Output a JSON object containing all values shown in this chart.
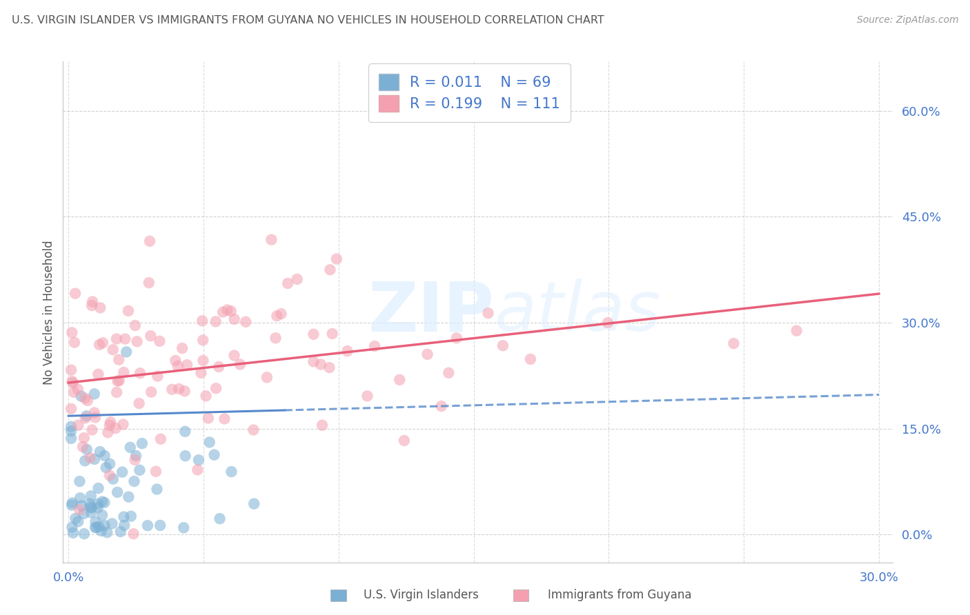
{
  "title": "U.S. VIRGIN ISLANDER VS IMMIGRANTS FROM GUYANA NO VEHICLES IN HOUSEHOLD CORRELATION CHART",
  "source": "Source: ZipAtlas.com",
  "ylabel": "No Vehicles in Household",
  "color_blue": "#7BAFD4",
  "color_pink": "#F4A0B0",
  "color_blue_line": "#5588CC",
  "color_pink_line": "#E8607A",
  "color_tick": "#4477CC",
  "title_color": "#555555",
  "source_color": "#999999",
  "background_color": "#FFFFFF",
  "grid_color": "#CCCCCC",
  "xlim": [
    -0.002,
    0.305
  ],
  "ylim": [
    -0.04,
    0.67
  ],
  "yticks": [
    0.0,
    0.15,
    0.3,
    0.45,
    0.6
  ],
  "ytick_labels": [
    "0.0%",
    "15.0%",
    "30.0%",
    "45.0%",
    "60.0%"
  ],
  "xtick_left": "0.0%",
  "xtick_right": "30.0%",
  "legend_r1": "R = 0.011",
  "legend_n1": "N = 69",
  "legend_r2": "R = 0.199",
  "legend_n2": "N = 111",
  "bottom_legend_1": "U.S. Virgin Islanders",
  "bottom_legend_2": "Immigrants from Guyana",
  "watermark_1": "ZIP",
  "watermark_2": "atlas",
  "N_blue": 69,
  "N_pink": 111,
  "blue_intercept": 0.165,
  "blue_slope": 0.18,
  "pink_intercept": 0.215,
  "pink_slope": 0.42
}
